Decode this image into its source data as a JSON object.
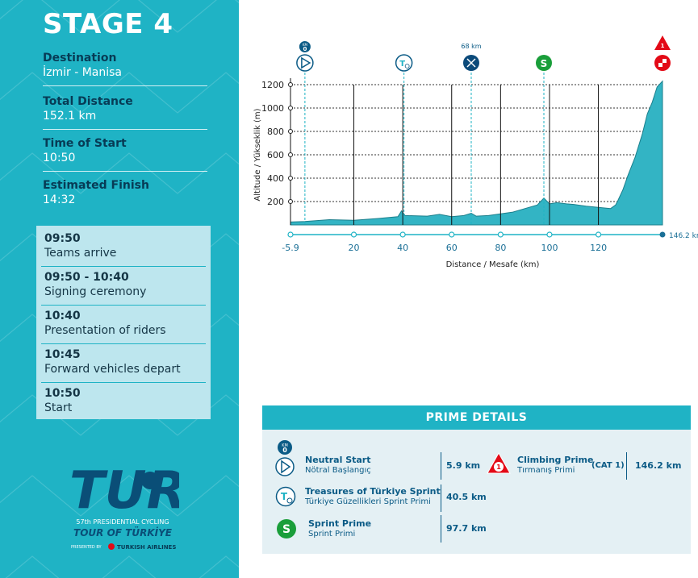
{
  "stage": {
    "title": "STAGE 4"
  },
  "info": [
    {
      "label": "Destination",
      "value": "İzmir - Manisa"
    },
    {
      "label": "Total Distance",
      "value": "152.1 km"
    },
    {
      "label": "Time of Start",
      "value": "10:50"
    },
    {
      "label": "Estimated Finish",
      "value": "14:32"
    }
  ],
  "schedule": [
    {
      "time": "09:50",
      "desc": "Teams arrive"
    },
    {
      "time": "09:50 - 10:40",
      "desc": "Signing ceremony"
    },
    {
      "time": "10:40",
      "desc": "Presentation of riders"
    },
    {
      "time": "10:45",
      "desc": "Forward vehicles depart"
    },
    {
      "time": "10:50",
      "desc": "Start"
    }
  ],
  "logo": {
    "mark": "TUR",
    "line1": "57th PRESIDENTIAL CYCLING",
    "line2": "TOUR OF TÜRKİYE",
    "presented": "PRESENTED BY",
    "sponsor": "TURKISH AIRLINES"
  },
  "markers": {
    "km_badge": "KM",
    "km_zero": "0",
    "feed_km": "68 km",
    "sprint_letter": "S",
    "climb_number": "1",
    "treasure_letter": "T"
  },
  "chart_data": {
    "type": "area",
    "ylabel": "Altitude / Yükseklik (m)",
    "xlabel": "Distance / Mesafe  (km)",
    "yticks": [
      200,
      400,
      600,
      800,
      1000,
      1200
    ],
    "xtick_labels": [
      "-5.9",
      "20",
      "40",
      "60",
      "80",
      "100",
      "120"
    ],
    "finish_label": "146.2 km",
    "xlim": [
      -5.9,
      146.2
    ],
    "ylim": [
      0,
      1200
    ],
    "x": [
      -5.9,
      0,
      10,
      20,
      30,
      38,
      39.5,
      41,
      50,
      55,
      60,
      65,
      68,
      70,
      75,
      80,
      85,
      90,
      95,
      97.7,
      100,
      103,
      107,
      110,
      115,
      120,
      125,
      127,
      128,
      130,
      132,
      135,
      138,
      140,
      142,
      144,
      146.2
    ],
    "y": [
      25,
      30,
      45,
      40,
      55,
      70,
      120,
      80,
      75,
      90,
      70,
      80,
      100,
      75,
      80,
      95,
      110,
      140,
      170,
      230,
      180,
      190,
      180,
      175,
      160,
      150,
      140,
      170,
      210,
      300,
      420,
      580,
      780,
      950,
      1050,
      1180,
      1230
    ]
  },
  "prime": {
    "header": "PRIME DETAILS",
    "neutral": {
      "name": "Neutral Start",
      "sub": "Nötral Başlangıç",
      "value": "5.9 km"
    },
    "treasure": {
      "name": "Treasures of Türkiye Sprint",
      "sub": "Türkiye Güzellikleri Sprint Primi",
      "value": "40.5 km"
    },
    "sprint": {
      "name": "Sprint Prime",
      "sub": "Sprint Primi",
      "value": "97.7 km"
    },
    "climb": {
      "name": "Climbing Prime",
      "sub": "Tırmanış Primi",
      "cat": "(CAT 1)",
      "value": "146.2 km"
    }
  },
  "colors": {
    "accent": "#1fb3c5",
    "dark": "#0b5b86",
    "red": "#e30a17",
    "green": "#1a9e3a"
  }
}
